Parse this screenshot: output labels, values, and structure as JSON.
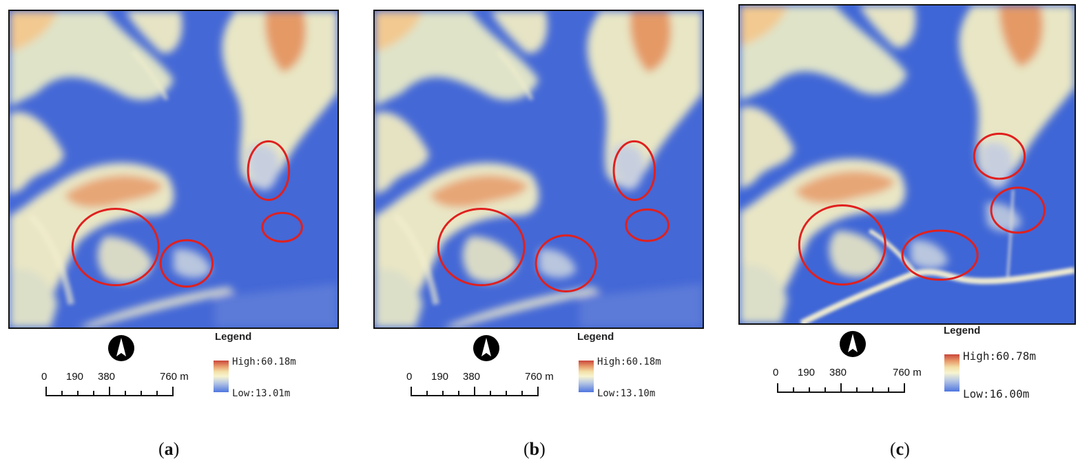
{
  "panels": [
    {
      "caption_open": "(",
      "caption_letter": "a",
      "caption_close": ")",
      "legend_title": "Legend",
      "legend_high": "High:60.18m",
      "legend_low": "Low:13.01m",
      "scale_ticks": [
        "0",
        "190",
        "380",
        "760 m"
      ]
    },
    {
      "caption_open": "(",
      "caption_letter": "b",
      "caption_close": ")",
      "legend_title": "Legend",
      "legend_high": "High:60.18m",
      "legend_low": "Low:13.10m",
      "scale_ticks": [
        "0",
        "190",
        "380",
        "760 m"
      ]
    },
    {
      "caption_open": "(",
      "caption_letter": "c",
      "caption_close": ")",
      "legend_title": "Legend",
      "legend_high": "High:60.78m",
      "legend_low": "Low:16.00m",
      "scale_ticks": [
        "0",
        "190",
        "380",
        "760 m"
      ]
    }
  ],
  "colors": {
    "low": "#3f66d6",
    "mid": "#f5f2cf",
    "high": "#d98a5e",
    "peak": "#c9463a",
    "highlight_circle": "#e0201e"
  },
  "icons": {
    "north_arrow": "north-arrow-icon"
  }
}
